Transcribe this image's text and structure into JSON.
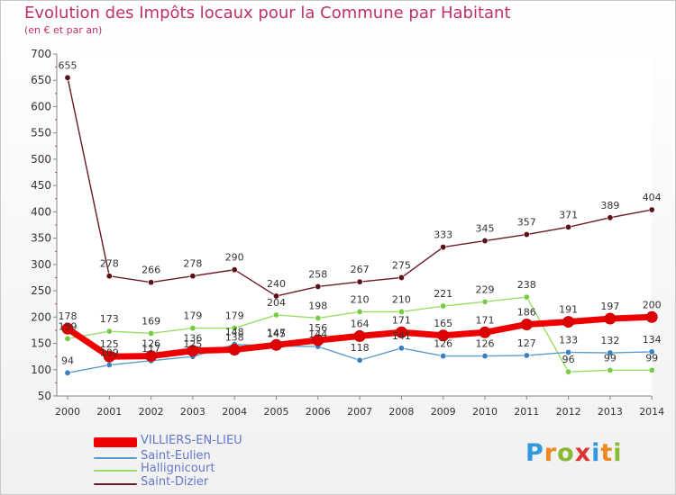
{
  "title": "Evolution des Impôts locaux pour la Commune par Habitant",
  "subtitle": "(en € et par an)",
  "logo": {
    "letters": [
      "P",
      "r",
      "o",
      "x",
      "i",
      "t",
      "i"
    ]
  },
  "chart_data": {
    "type": "line",
    "title": "Evolution des Impôts locaux pour la Commune par Habitant",
    "ylabel": "(en € et par an)",
    "xlabel": "",
    "ylim": [
      50,
      700
    ],
    "y_ticks": [
      50,
      100,
      150,
      200,
      250,
      300,
      350,
      400,
      450,
      500,
      550,
      600,
      650,
      700
    ],
    "categories": [
      "2000",
      "2001",
      "2002",
      "2003",
      "2004",
      "2005",
      "2006",
      "2007",
      "2008",
      "2009",
      "2010",
      "2011",
      "2012",
      "2013",
      "2014"
    ],
    "series": [
      {
        "name": "Saint-Dizier",
        "color": "#6b1a25",
        "dot": "#5a1218",
        "values": [
          655,
          278,
          266,
          278,
          290,
          240,
          258,
          267,
          275,
          333,
          345,
          357,
          371,
          389,
          404
        ]
      },
      {
        "name": "Hallignicourt",
        "color": "#99dd66",
        "dot": "#77cc44",
        "values": [
          159,
          173,
          169,
          179,
          179,
          204,
          198,
          210,
          210,
          221,
          229,
          238,
          96,
          99,
          99
        ]
      },
      {
        "name": "Saint-Eulien",
        "color": "#5c9ccc",
        "dot": "#3a7fc0",
        "values": [
          94,
          109,
          117,
          125,
          148,
          145,
          144,
          118,
          141,
          126,
          126,
          127,
          133,
          132,
          134
        ]
      },
      {
        "name": "VILLIERS-EN-LIEU",
        "color": "#ee0000",
        "dot": "#dd0000",
        "values": [
          178,
          125,
          126,
          136,
          138,
          147,
          156,
          164,
          171,
          165,
          171,
          186,
          191,
          197,
          200
        ]
      }
    ],
    "legend": [
      "VILLIERS-EN-LIEU",
      "Saint-Eulien",
      "Hallignicourt",
      "Saint-Dizier"
    ]
  }
}
